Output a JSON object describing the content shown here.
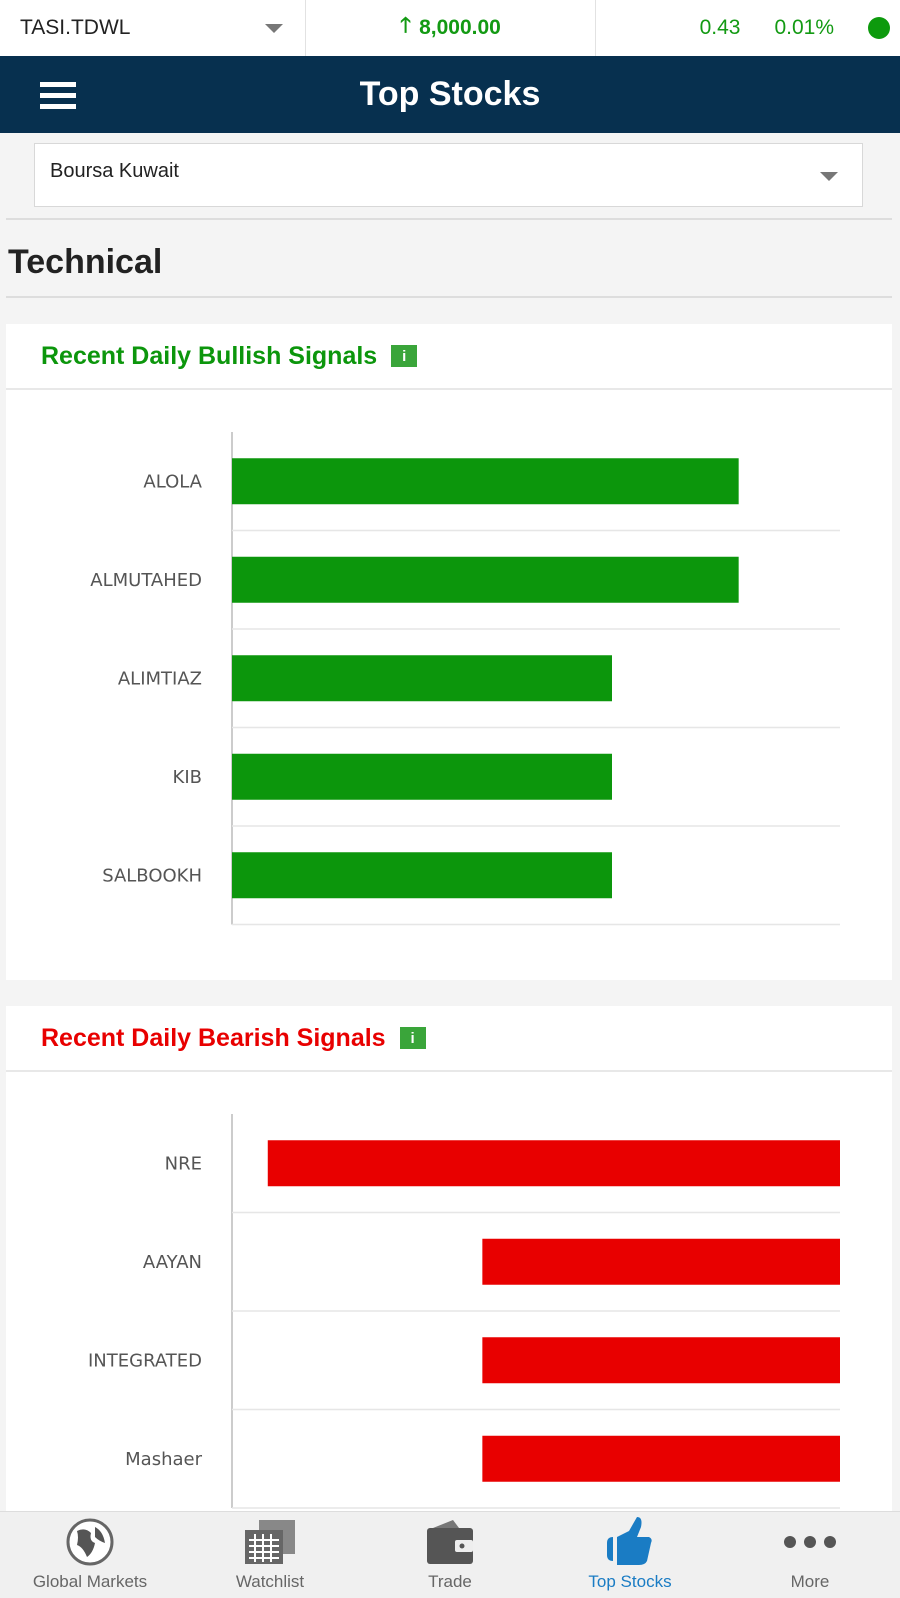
{
  "ticker": {
    "symbol": "TASI.TDWL",
    "value": "8,000.00",
    "direction": "up",
    "change": "0.43",
    "change_pct": "0.01%",
    "status_color": "#0d9a0d"
  },
  "header": {
    "title": "Top Stocks"
  },
  "market_select": {
    "value": "Boursa Kuwait"
  },
  "section_title": "Technical",
  "bullish": {
    "title": "Recent Daily Bullish Signals",
    "color": "#0c960c"
  },
  "bearish": {
    "title": "Recent Daily Bearish Signals",
    "color": "#e80000"
  },
  "chart_data": [
    {
      "type": "bar",
      "orientation": "horizontal",
      "categories": [
        "ALOLA",
        "ALMUTAHED",
        "ALIMTIAZ",
        "KIB",
        "SALBOOKH"
      ],
      "values": [
        4,
        4,
        3,
        3,
        3
      ],
      "xlim": [
        0,
        4.8
      ],
      "grid": true,
      "color": "#0c960c"
    },
    {
      "type": "bar",
      "orientation": "horizontal",
      "reversed": true,
      "categories": [
        "NRE",
        "AAYAN",
        "INTEGRATED",
        "Mashaer"
      ],
      "values": [
        8,
        5,
        5,
        5
      ],
      "xlim": [
        0,
        8.5
      ],
      "grid": true,
      "color": "#e80000"
    }
  ],
  "nav": {
    "items": [
      {
        "label": "Global Markets",
        "icon": "globe-icon"
      },
      {
        "label": "Watchlist",
        "icon": "calendar-grid-icon"
      },
      {
        "label": "Trade",
        "icon": "wallet-icon"
      },
      {
        "label": "Top Stocks",
        "icon": "thumbs-up-icon",
        "active": true
      },
      {
        "label": "More",
        "icon": "more-dots-icon"
      }
    ]
  }
}
